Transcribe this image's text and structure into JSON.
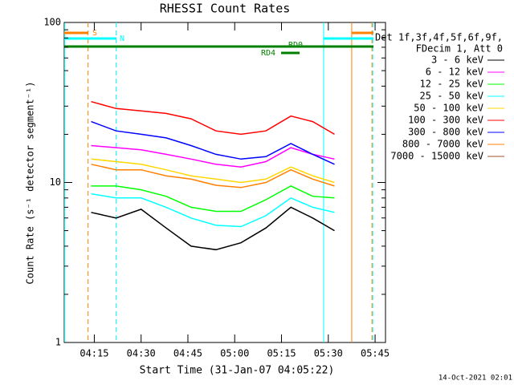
{
  "chart_data": {
    "type": "line",
    "title": "RHESSI Count Rates",
    "xlabel": "Start Time (31-Jan-07 04:05:22)",
    "ylabel": "Count Rate (s⁻¹ detector segment⁻¹)",
    "legend_header": [
      "Det 1f,3f,4f,5f,6f,9f,",
      "FDecim 1, Att 0"
    ],
    "footer": "14-Oct-2021 02:01",
    "log_y": true,
    "xlim": [
      "04:05:22",
      "05:48:20"
    ],
    "xticks": [
      "04:15",
      "04:30",
      "04:45",
      "05:00",
      "05:15",
      "05:30",
      "05:45"
    ],
    "ylim": [
      1,
      100
    ],
    "yticks": [
      1,
      10,
      100
    ],
    "x": [
      "04:14",
      "04:22",
      "04:30",
      "04:38",
      "04:46",
      "04:54",
      "05:02",
      "05:10",
      "05:18",
      "05:25",
      "05:32"
    ],
    "series": [
      {
        "name": "3 - 6 keV",
        "color": "#000000",
        "values": [
          6.5,
          6.0,
          6.8,
          5.2,
          4.0,
          3.8,
          4.2,
          5.2,
          7.0,
          6.0,
          5.0
        ]
      },
      {
        "name": "6 - 12 keV",
        "color": "#ff00ff",
        "values": [
          17,
          16.5,
          16,
          15,
          14,
          13,
          12.5,
          13.5,
          16.5,
          15,
          14
        ]
      },
      {
        "name": "12 - 25 keV",
        "color": "#00ff00",
        "values": [
          9.5,
          9.5,
          9.0,
          8.2,
          7.0,
          6.6,
          6.6,
          7.8,
          9.5,
          8.2,
          8.0
        ]
      },
      {
        "name": "25 - 50 keV",
        "color": "#00ffff",
        "values": [
          8.5,
          8.0,
          8.0,
          7.0,
          6.0,
          5.4,
          5.3,
          6.2,
          8.0,
          7.0,
          6.5
        ]
      },
      {
        "name": "50 - 100 keV",
        "color": "#ffd700",
        "values": [
          14,
          13.5,
          13,
          12,
          11,
          10.5,
          10,
          10.5,
          12.5,
          11,
          10
        ]
      },
      {
        "name": "100 - 300 keV",
        "color": "#ff0000",
        "values": [
          32,
          29,
          28,
          27,
          25,
          21,
          20,
          21,
          26,
          24,
          20
        ]
      },
      {
        "name": "300 - 800 keV",
        "color": "#0000ff",
        "values": [
          24,
          21,
          20,
          19,
          17,
          15,
          14,
          14.5,
          17.5,
          15,
          13
        ]
      },
      {
        "name": "800 - 7000 keV",
        "color": "#ff8000",
        "values": [
          13,
          12,
          12,
          11,
          10.5,
          9.6,
          9.3,
          10,
          12,
          10.5,
          9.5
        ]
      },
      {
        "name": "7000 - 15000 keV",
        "color": "#a0522d",
        "values": [
          null,
          null,
          null,
          null,
          null,
          null,
          null,
          null,
          null,
          null,
          null
        ]
      }
    ],
    "flags": [
      {
        "text": "S",
        "color": "#ff8000"
      },
      {
        "text": "N",
        "color": "#00ffff"
      },
      {
        "text": "RD0",
        "color": "#008000"
      },
      {
        "text": "RD4",
        "color": "#008000"
      }
    ],
    "vlines": [
      {
        "x": "04:05:30",
        "color": "#00ffff",
        "dashed": false
      },
      {
        "x": "04:13",
        "color": "#ff8000",
        "dashed": true
      },
      {
        "x": "04:22",
        "color": "#00ffff",
        "dashed": true
      },
      {
        "x": "05:28:30",
        "color": "#00ffff",
        "dashed": false
      },
      {
        "x": "05:37:30",
        "color": "#ff8000",
        "dashed": false
      },
      {
        "x": "05:44",
        "color": "#ff8000",
        "dashed": true
      },
      {
        "x": "05:44:15",
        "color": "#00ffff",
        "dashed": true
      }
    ]
  }
}
